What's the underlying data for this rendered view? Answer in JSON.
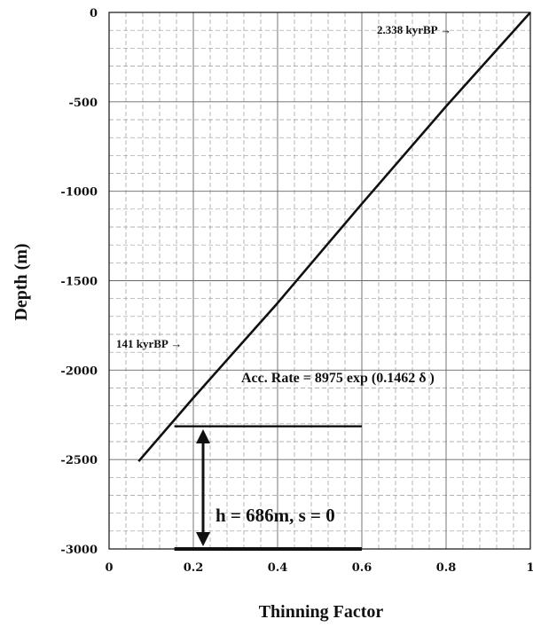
{
  "chart_data": {
    "type": "line",
    "xlabel": "Thinning Factor",
    "ylabel": "Depth  (m)",
    "xlim": [
      0,
      1
    ],
    "ylim": [
      -3000,
      0
    ],
    "x_ticks": [
      "0",
      "0.2",
      "0.4",
      "0.6",
      "0.8",
      "1"
    ],
    "y_ticks": [
      "0",
      "-500",
      "-1000",
      "-1500",
      "-2000",
      "-2500",
      "-3000"
    ],
    "grid": true,
    "series": [
      {
        "x": [
          0.07,
          0.2,
          0.4,
          0.6,
          0.8,
          1.0
        ],
        "y": [
          -2510,
          -2155,
          -1625,
          -1070,
          -525,
          0
        ]
      }
    ],
    "annotations": {
      "top_age": "2.338 kyrBP  →",
      "bottom_age": "141 kyrBP →",
      "formula": "Acc. Rate = 8975 exp (0.1462 δ )",
      "thickness": "h = 686m,  s = 0"
    },
    "reference_lines": [
      {
        "y": -2314,
        "x_from": 0.155,
        "x_to": 0.6
      },
      {
        "y": -3000,
        "x_from": 0.155,
        "x_to": 0.6
      }
    ]
  }
}
